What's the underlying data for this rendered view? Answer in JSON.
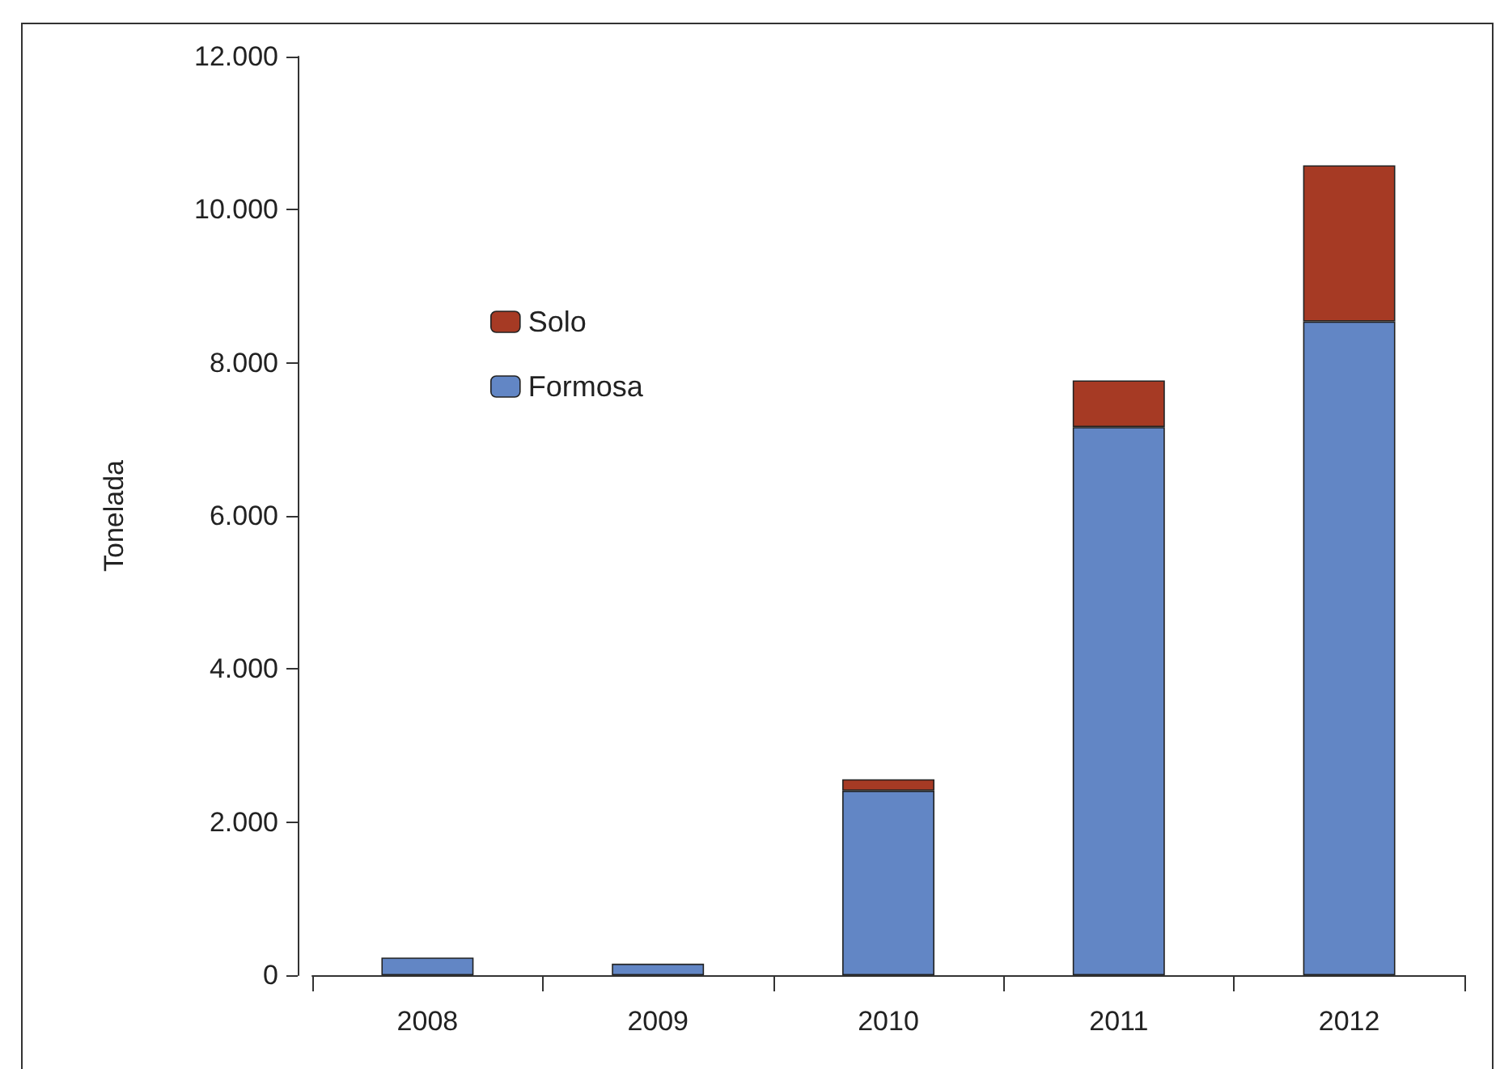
{
  "chart_data": {
    "type": "bar",
    "stacked": true,
    "ylabel": "Tonelada",
    "categories": [
      "2008",
      "2009",
      "2010",
      "2011",
      "2012"
    ],
    "series": [
      {
        "name": "Formosa",
        "color": "#6286c5",
        "values": [
          230,
          150,
          2410,
          7160,
          8540
        ]
      },
      {
        "name": "Solo",
        "color": "#a63a24",
        "values": [
          null,
          null,
          150,
          610,
          2040
        ]
      }
    ],
    "ylim": [
      0,
      12000
    ],
    "yticks": [
      {
        "value": 0,
        "label": "0"
      },
      {
        "value": 2000,
        "label": "2.000"
      },
      {
        "value": 4000,
        "label": "4.000"
      },
      {
        "value": 6000,
        "label": "6.000"
      },
      {
        "value": 8000,
        "label": "8.000"
      },
      {
        "value": 10000,
        "label": "10.000"
      },
      {
        "value": 12000,
        "label": "12.000"
      }
    ],
    "grid": false,
    "legend": "top left"
  }
}
